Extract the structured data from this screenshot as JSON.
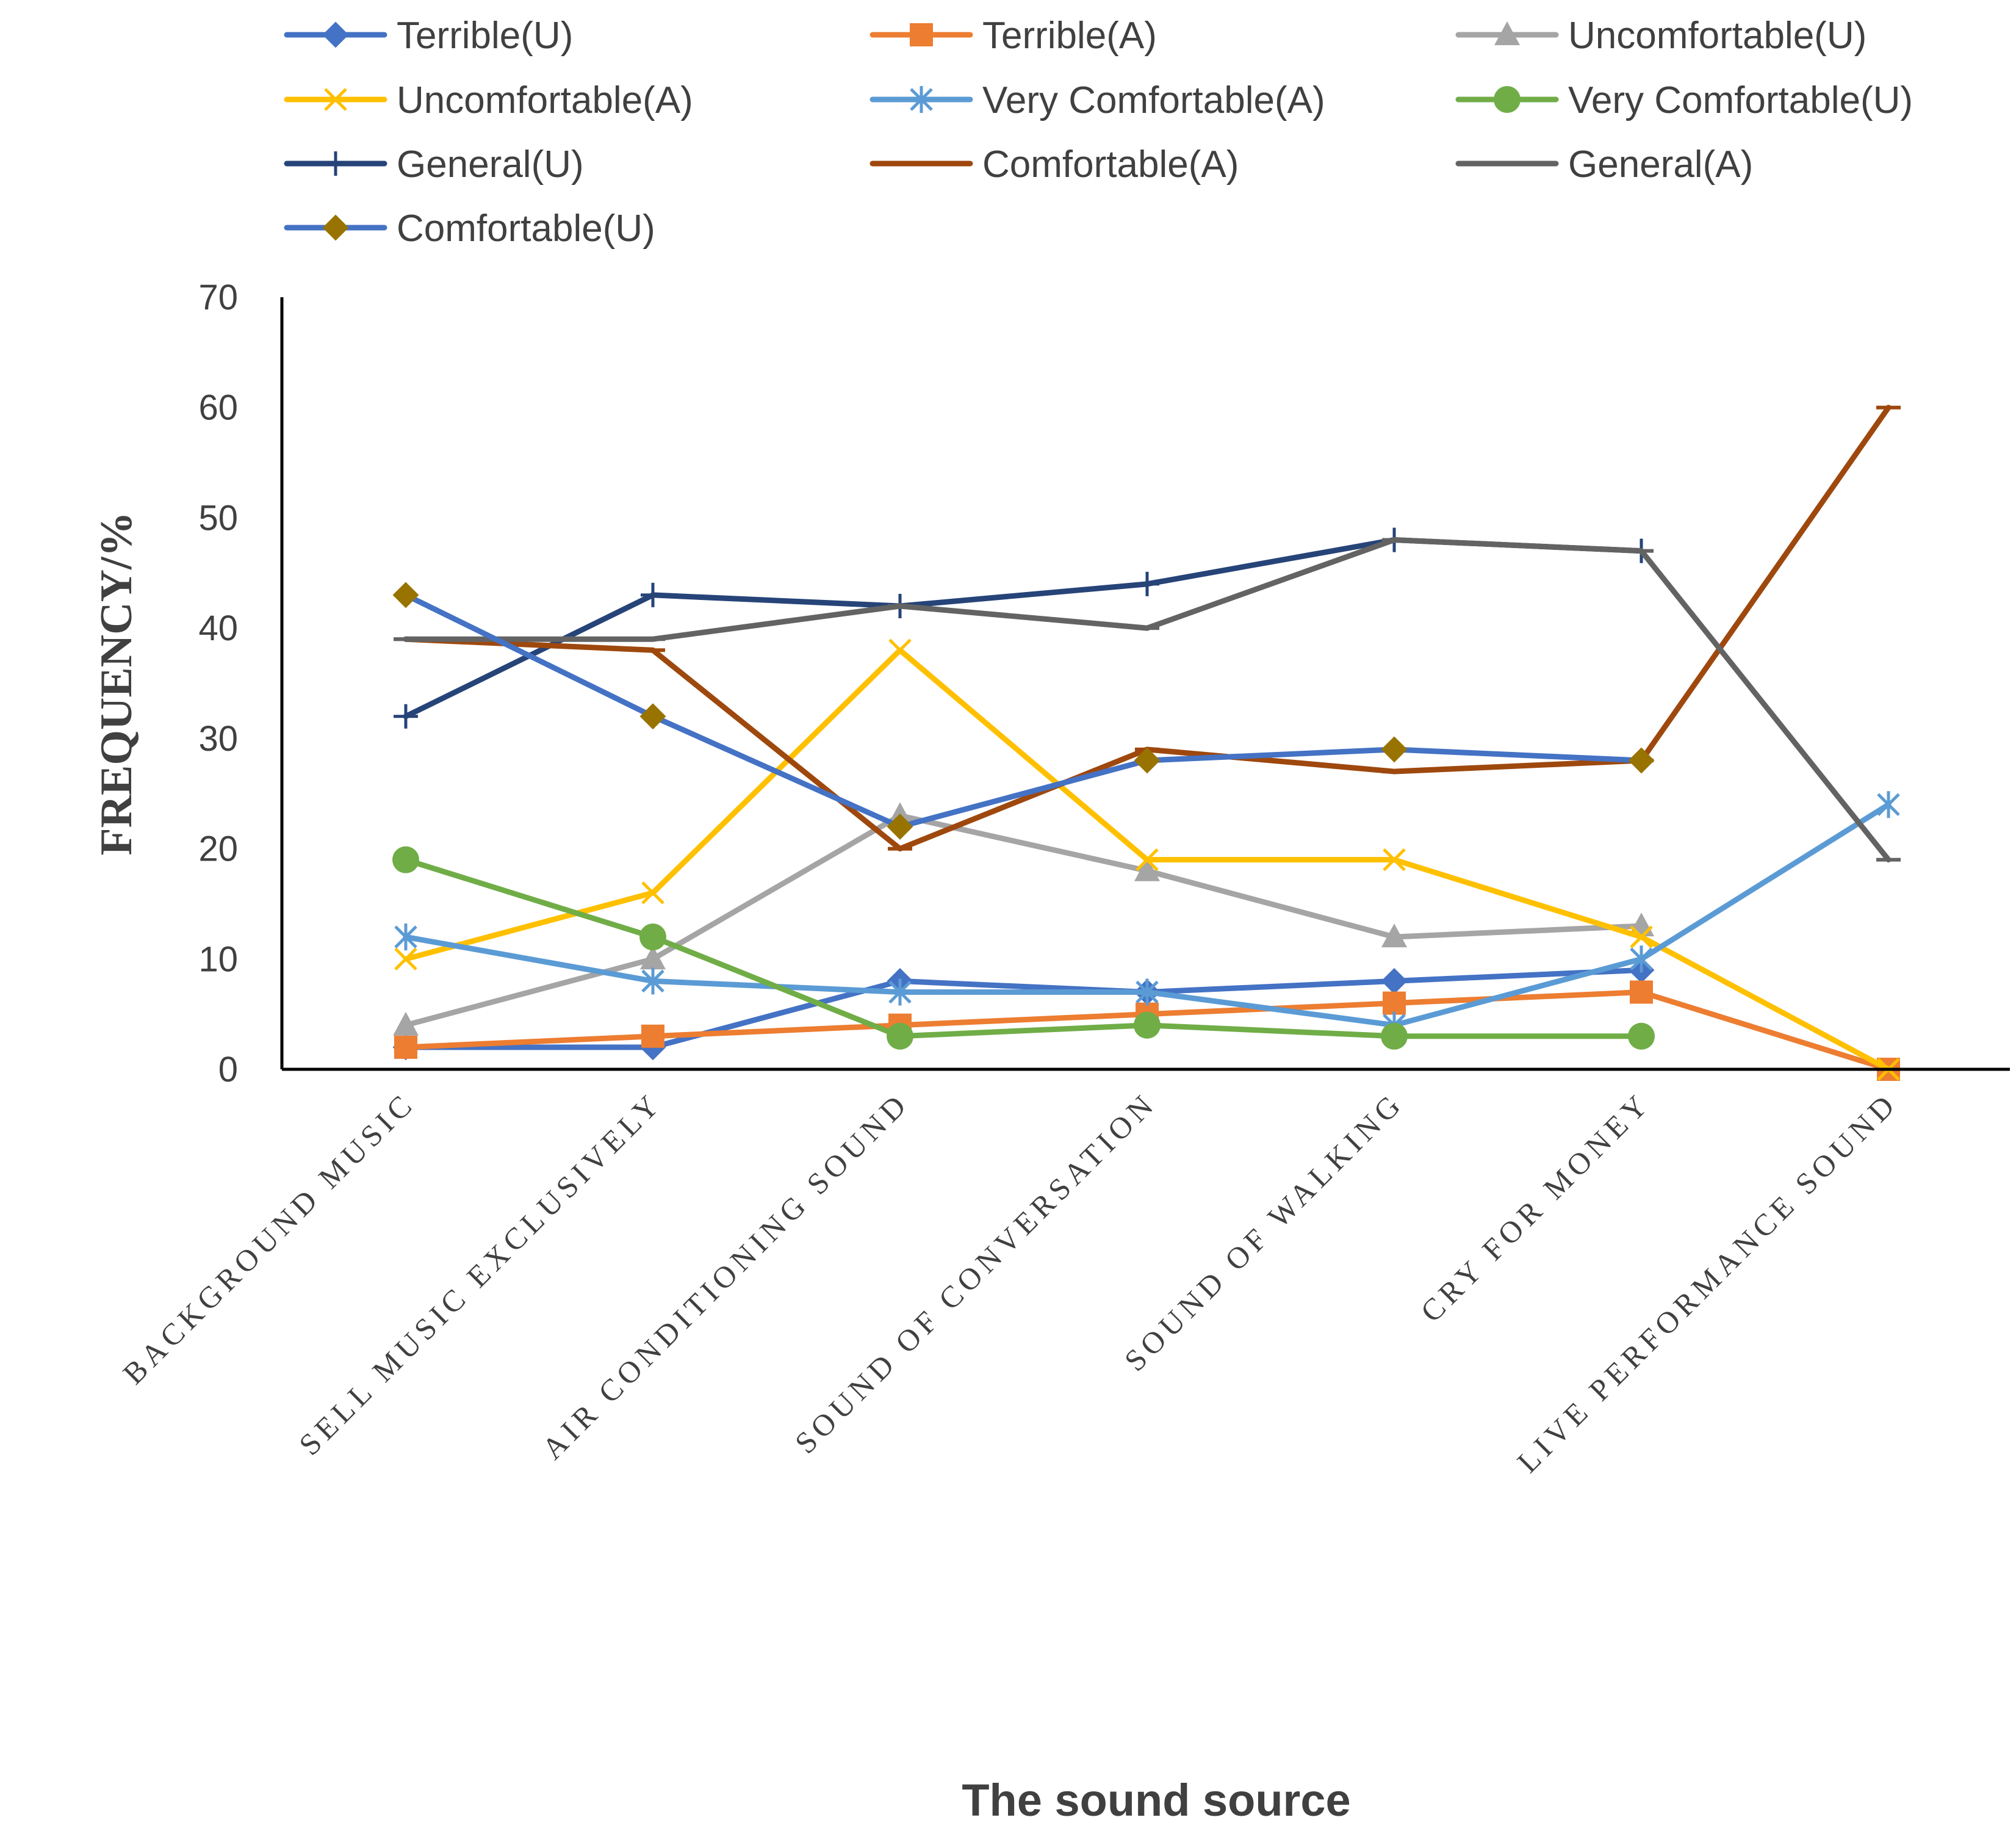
{
  "chart_data": {
    "type": "line",
    "title": "",
    "xlabel": "The sound source",
    "ylabel": "FREQUENCY/%",
    "ylim": [
      0,
      70
    ],
    "yticks": [
      0,
      10,
      20,
      30,
      40,
      50,
      60,
      70
    ],
    "legend_position": "top",
    "categories": [
      "BACKGROUND MUSIC",
      "SELL MUSIC EXCLUSIVELY",
      "AIR CONDITIONING SOUND",
      "SOUND OF CONVERSATION",
      "SOUND OF WALKING",
      "CRY FOR MONEY",
      "LIVE PERFORMANCE SOUND"
    ],
    "series": [
      {
        "name": "Terrible(U)",
        "color": "#4472C4",
        "marker": "diamond",
        "values": [
          2,
          2,
          8,
          7,
          8,
          9,
          null
        ]
      },
      {
        "name": "Terrible(A)",
        "color": "#ED7D31",
        "marker": "square",
        "values": [
          2,
          3,
          4,
          5,
          6,
          7,
          0
        ]
      },
      {
        "name": "Uncomfortable(U)",
        "color": "#A5A5A5",
        "marker": "triangle",
        "values": [
          4,
          10,
          23,
          18,
          12,
          13,
          null
        ]
      },
      {
        "name": "Uncomfortable(A)",
        "color": "#FFC000",
        "marker": "x",
        "values": [
          10,
          16,
          38,
          19,
          19,
          12,
          0
        ]
      },
      {
        "name": "Very Comfortable(A)",
        "color": "#5B9BD5",
        "marker": "star",
        "values": [
          12,
          8,
          7,
          7,
          4,
          10,
          24
        ]
      },
      {
        "name": "Very Comfortable(U)",
        "color": "#70AD47",
        "marker": "circle",
        "values": [
          19,
          12,
          3,
          4,
          3,
          3,
          null
        ]
      },
      {
        "name": "General(U)",
        "color": "#264478",
        "marker": "plus",
        "values": [
          32,
          43,
          42,
          44,
          48,
          47,
          null
        ]
      },
      {
        "name": "Comfortable(A)",
        "color": "#9E480E",
        "marker": "dash",
        "values": [
          39,
          38,
          20,
          29,
          27,
          28,
          60
        ]
      },
      {
        "name": "General(A)",
        "color": "#636363",
        "marker": "dash",
        "values": [
          39,
          39,
          42,
          40,
          48,
          47,
          19
        ]
      },
      {
        "name": "Comfortable(U)",
        "color": "#4472C4",
        "marker": "diamond-gold",
        "marker_color": "#997300",
        "values": [
          43,
          32,
          22,
          28,
          29,
          28,
          null
        ]
      }
    ]
  }
}
